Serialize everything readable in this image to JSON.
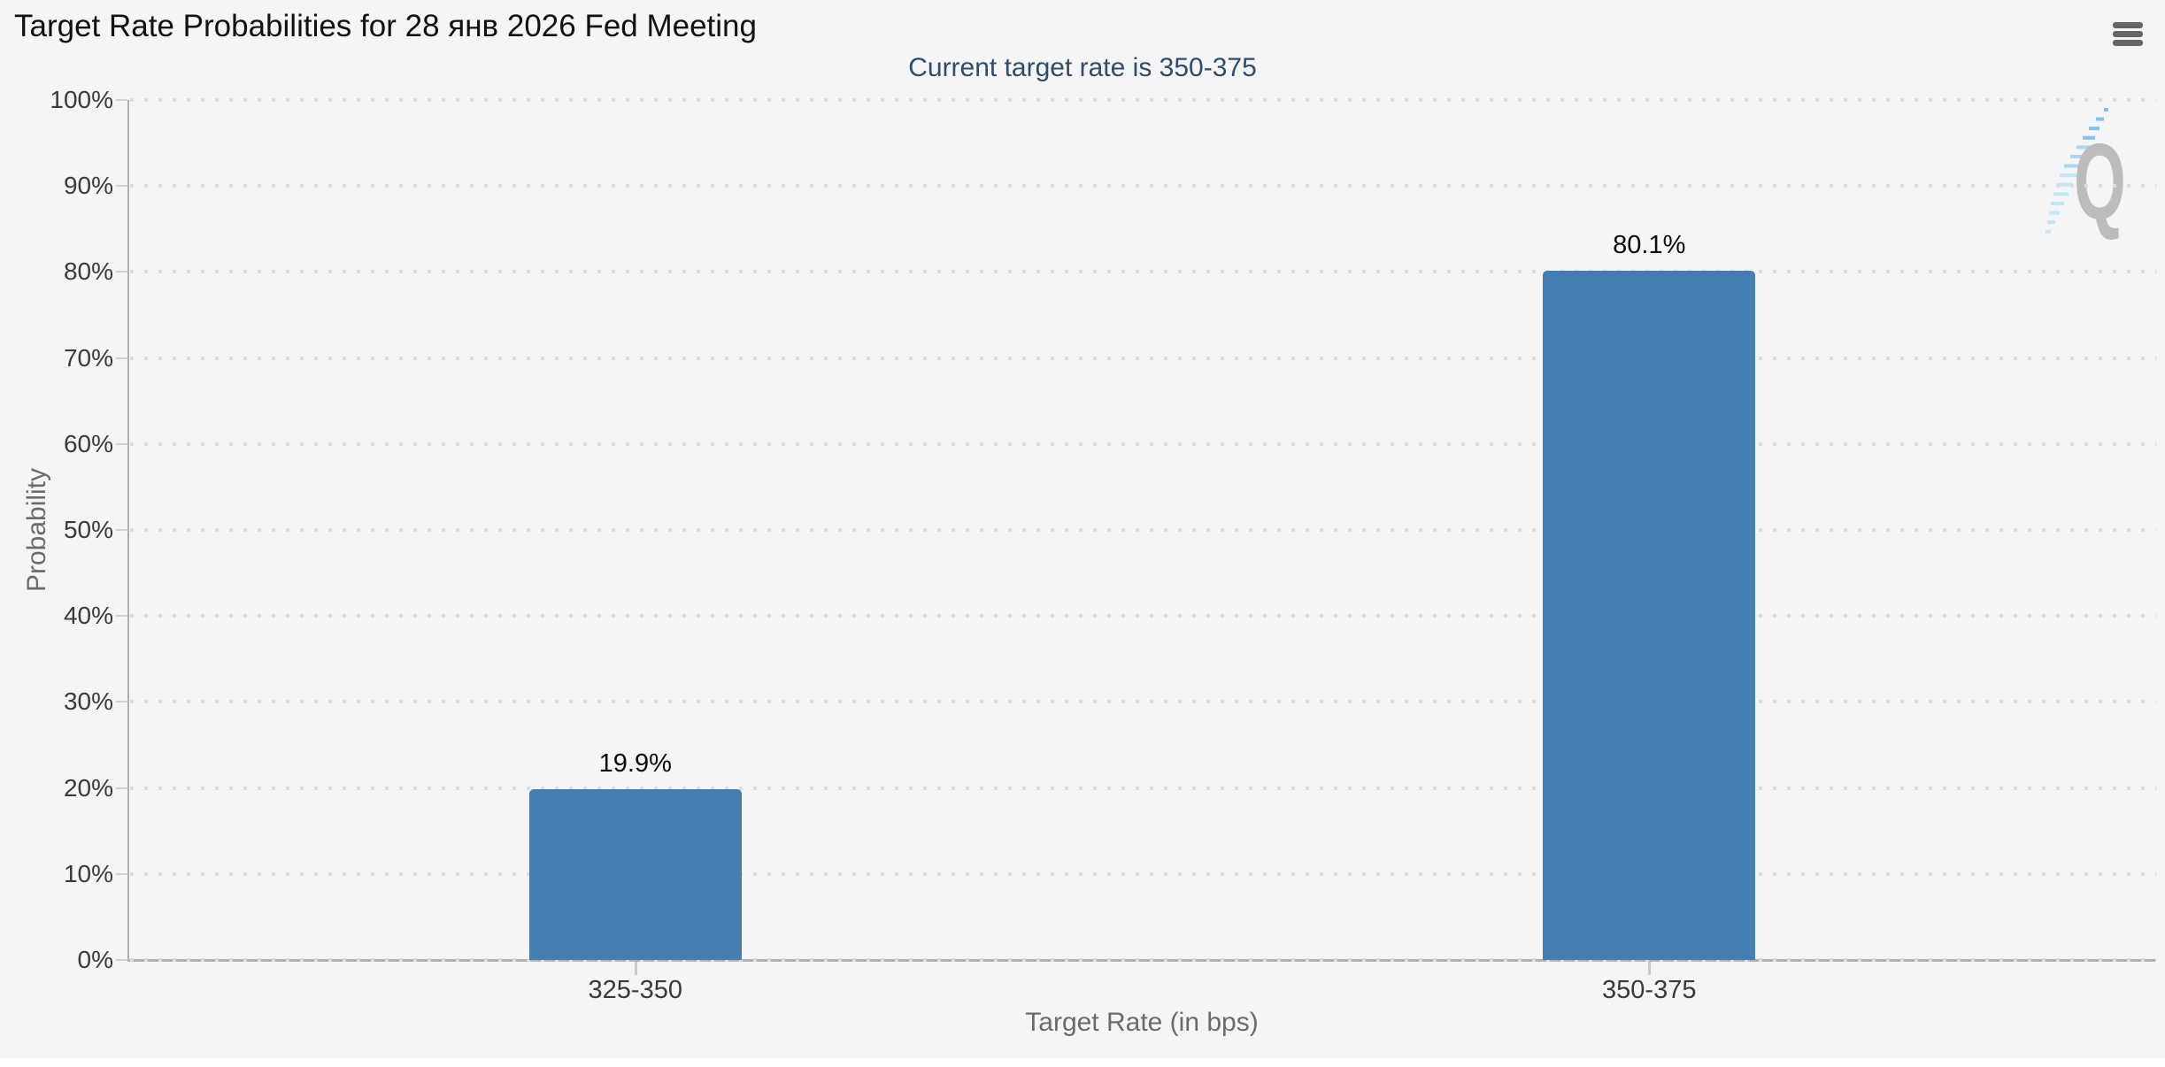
{
  "chart_data": {
    "type": "bar",
    "title": "Target Rate Probabilities for 28 янв 2026 Fed Meeting",
    "subtitle": "Current target rate is 350-375",
    "categories": [
      "325-350",
      "350-375"
    ],
    "values": [
      19.9,
      80.1
    ],
    "value_labels": [
      "19.9%",
      "80.1%"
    ],
    "xlabel": "Target Rate (in bps)",
    "ylabel": "Probability",
    "ylim": [
      0,
      100
    ],
    "ytick_step": 10,
    "ytick_labels": [
      "0%",
      "10%",
      "20%",
      "30%",
      "40%",
      "50%",
      "60%",
      "70%",
      "80%",
      "90%",
      "100%"
    ],
    "grid": "dotted-horizontal",
    "legend": "none",
    "watermark": "Q",
    "colors": {
      "bar": "#447eb3",
      "background": "#f5f5f5",
      "title": "#111111",
      "subtitle": "#2e4c6c",
      "axis_label": "#3a3a3a",
      "axis_title": "#6b6b6b",
      "axis_line": "#b0b0b0",
      "gridline": "#dcdcdc",
      "menu_icon": "#666666",
      "watermark_gray": "#bcbcbc",
      "watermark_blue": "#83c0ee",
      "watermark_cyan": "#bfe9f8"
    }
  }
}
